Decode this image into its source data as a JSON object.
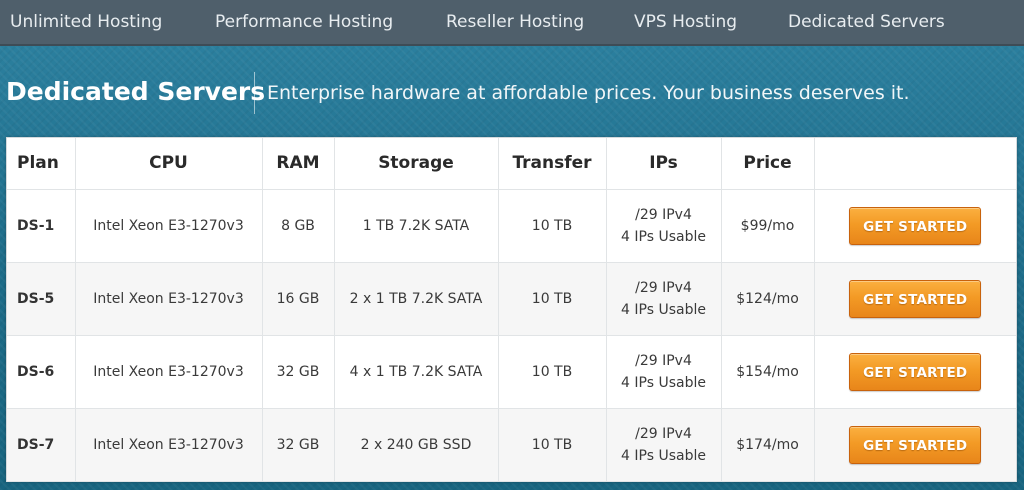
{
  "nav": {
    "items": [
      {
        "label": "Unlimited Hosting"
      },
      {
        "label": "Performance Hosting"
      },
      {
        "label": "Reseller Hosting"
      },
      {
        "label": "VPS Hosting"
      },
      {
        "label": "Dedicated Servers"
      }
    ]
  },
  "header": {
    "title": "Dedicated Servers",
    "tagline": "Enterprise hardware at affordable prices. Your business deserves it."
  },
  "table": {
    "columns": [
      "Plan",
      "CPU",
      "RAM",
      "Storage",
      "Transfer",
      "IPs",
      "Price",
      ""
    ],
    "rows": [
      {
        "plan": "DS-1",
        "cpu": "Intel Xeon E3-1270v3",
        "ram": "8 GB",
        "storage": "1 TB 7.2K SATA",
        "transfer": "10 TB",
        "ips_line1": "/29 IPv4",
        "ips_line2": "4 IPs Usable",
        "price": "$99/mo",
        "cta": "GET STARTED"
      },
      {
        "plan": "DS-5",
        "cpu": "Intel Xeon E3-1270v3",
        "ram": "16 GB",
        "storage": "2 x 1 TB 7.2K SATA",
        "transfer": "10 TB",
        "ips_line1": "/29 IPv4",
        "ips_line2": "4 IPs Usable",
        "price": "$124/mo",
        "cta": "GET STARTED"
      },
      {
        "plan": "DS-6",
        "cpu": "Intel Xeon E3-1270v3",
        "ram": "32 GB",
        "storage": "4 x 1 TB 7.2K SATA",
        "transfer": "10 TB",
        "ips_line1": "/29 IPv4",
        "ips_line2": "4 IPs Usable",
        "price": "$154/mo",
        "cta": "GET STARTED"
      },
      {
        "plan": "DS-7",
        "cpu": "Intel Xeon E3-1270v3",
        "ram": "32 GB",
        "storage": "2 x 240 GB SSD",
        "transfer": "10 TB",
        "ips_line1": "/29 IPv4",
        "ips_line2": "4 IPs Usable",
        "price": "$174/mo",
        "cta": "GET STARTED"
      }
    ]
  },
  "colors": {
    "navbar": "#4f5f6b",
    "hero": "#1f6f8c",
    "button": "#f39a25"
  }
}
